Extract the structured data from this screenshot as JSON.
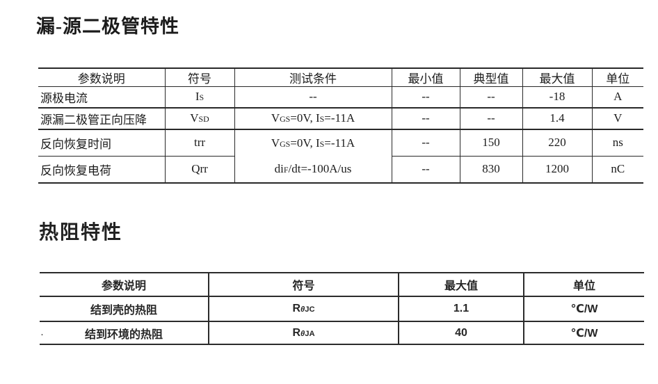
{
  "diode": {
    "title": "漏-源二极管特性",
    "table": {
      "headers": [
        "参数说明",
        "符号",
        "测试条件",
        "最小值",
        "典型值",
        "最大值",
        "单位"
      ],
      "rows": [
        {
          "param": "源极电流",
          "symbol_parts": [
            {
              "text": "I"
            },
            {
              "text": "S",
              "sub": true
            }
          ],
          "cond": "--",
          "min": "--",
          "typ": "--",
          "max": "-18",
          "unit": "A"
        },
        {
          "param": "源漏二极管正向压降",
          "symbol_parts": [
            {
              "text": "V"
            },
            {
              "text": "SD",
              "sub": true
            }
          ],
          "cond_parts": [
            {
              "text": "V"
            },
            {
              "text": "GS",
              "sub": true
            },
            {
              "text": "=0V, I"
            },
            {
              "text": "S",
              "sub": true
            },
            {
              "text": "=-11A"
            }
          ],
          "min": "--",
          "typ": "--",
          "max": "1.4",
          "unit": "V"
        },
        {
          "param": "反向恢复时间",
          "symbol_parts": [
            {
              "text": "trr"
            }
          ],
          "min": "--",
          "typ": "150",
          "max": "220",
          "unit": "ns"
        },
        {
          "param": "反向恢复电荷",
          "symbol_parts": [
            {
              "text": "Qrr"
            }
          ],
          "min": "--",
          "typ": "830",
          "max": "1200",
          "unit": "nC"
        }
      ],
      "merged_cond_lines": {
        "line1": [
          {
            "text": "V"
          },
          {
            "text": "GS",
            "sub": true
          },
          {
            "text": "=0V, I"
          },
          {
            "text": "S",
            "sub": true
          },
          {
            "text": "=-11A"
          }
        ],
        "line2": [
          {
            "text": "di"
          },
          {
            "text": "F",
            "sub": true
          },
          {
            "text": "/dt=-100A/us"
          }
        ]
      }
    }
  },
  "thermal": {
    "title": "热阻特性",
    "table": {
      "headers": [
        "参数说明",
        "符号",
        "最大值",
        "单位"
      ],
      "rows": [
        {
          "param": "结到壳的热阻",
          "symbol_parts": [
            {
              "text": "R"
            },
            {
              "text": "θ",
              "sub": true,
              "italic": true
            },
            {
              "text": "JC",
              "sub": true
            }
          ],
          "max": "1.1",
          "unit": "℃/W"
        },
        {
          "param": "结到环境的热阻",
          "symbol_parts": [
            {
              "text": "R"
            },
            {
              "text": "θ",
              "sub": true,
              "italic": true
            },
            {
              "text": "JA",
              "sub": true
            }
          ],
          "max": "40",
          "unit": "℃/W"
        }
      ]
    },
    "stray_mark": "·"
  }
}
